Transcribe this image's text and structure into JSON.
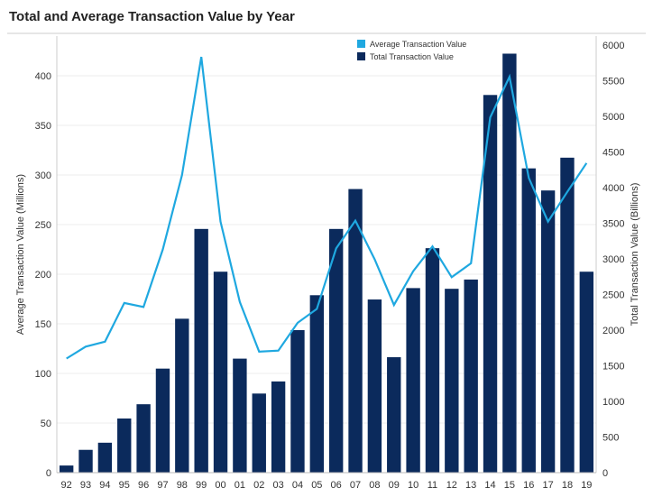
{
  "chart_data": {
    "type": "bar+line",
    "title": "Total and Average Transaction Value by Year",
    "categories": [
      "92",
      "93",
      "94",
      "95",
      "96",
      "97",
      "98",
      "99",
      "00",
      "01",
      "02",
      "03",
      "04",
      "05",
      "06",
      "07",
      "08",
      "09",
      "10",
      "11",
      "12",
      "13",
      "14",
      "15",
      "16",
      "17",
      "18",
      "19"
    ],
    "series": [
      {
        "name": "Total Transaction Value",
        "type": "bar",
        "axis": "right",
        "color": "#0b2a5c",
        "values": [
          100,
          320,
          420,
          760,
          960,
          1460,
          2160,
          3420,
          2820,
          1600,
          1110,
          1280,
          2000,
          2490,
          3420,
          3980,
          2430,
          1620,
          2590,
          3150,
          2580,
          2710,
          5300,
          5880,
          4270,
          3960,
          4420,
          2820
        ]
      },
      {
        "name": "Average Transaction Value",
        "type": "line",
        "axis": "left",
        "color": "#1fa8e0",
        "values": [
          115,
          127,
          132,
          171,
          167,
          225,
          300,
          419,
          253,
          172,
          122,
          123,
          151,
          165,
          226,
          254,
          215,
          169,
          203,
          228,
          197,
          211,
          358,
          399,
          297,
          253,
          283,
          312
        ]
      }
    ],
    "ylabel_left": "Average Transaction Value (Millions)",
    "ylabel_right": "Total Transaction Value (Billions)",
    "ylim_left": [
      0,
      440
    ],
    "ylim_right": [
      0,
      6000
    ],
    "yticks_left": [
      0,
      50,
      100,
      150,
      200,
      250,
      300,
      350,
      400
    ],
    "yticks_right": [
      0,
      500,
      1000,
      1500,
      2000,
      2500,
      3000,
      3500,
      4000,
      4500,
      5000,
      5500,
      6000
    ],
    "legend": [
      "Average Transaction Value",
      "Total Transaction Value"
    ],
    "legend_position": "top-center",
    "grid": true
  }
}
